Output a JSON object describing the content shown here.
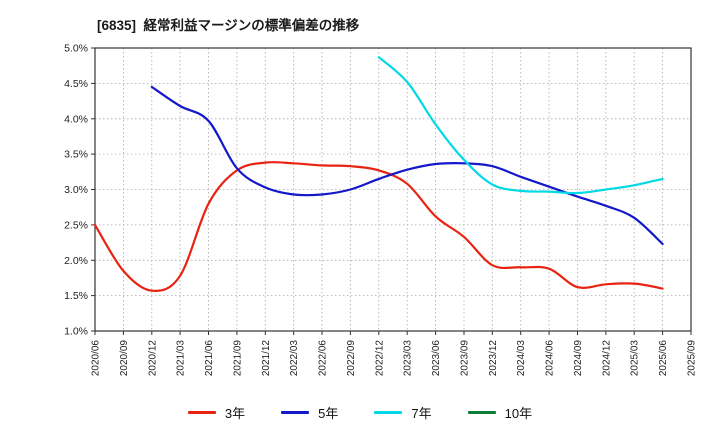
{
  "title": "[6835]  経常利益マージンの標準偏差の推移",
  "chart_data": {
    "type": "line",
    "title": "[6835]  経常利益マージンの標準偏差の推移",
    "x_labels": [
      "2020/06",
      "2020/09",
      "2020/12",
      "2021/03",
      "2021/06",
      "2021/09",
      "2021/12",
      "2022/03",
      "2022/06",
      "2022/09",
      "2022/12",
      "2023/03",
      "2023/06",
      "2023/09",
      "2023/12",
      "2024/03",
      "2024/06",
      "2024/09",
      "2024/12",
      "2025/03",
      "2025/06",
      "2025/09"
    ],
    "ylim": [
      1.0,
      5.0
    ],
    "ytick_step": 0.5,
    "ytick_format": "percent",
    "grid": true,
    "legend_position": "bottom",
    "axis_color": "#333333",
    "grid_color": "#aaaaaa",
    "series": [
      {
        "id": "3y",
        "name": "3年",
        "color": "#e82312",
        "values": [
          2.5,
          1.85,
          1.57,
          1.78,
          2.8,
          3.27,
          3.38,
          3.37,
          3.34,
          3.33,
          3.27,
          3.08,
          2.62,
          2.33,
          1.93,
          1.9,
          1.88,
          1.62,
          1.66,
          1.67,
          1.6,
          null
        ]
      },
      {
        "id": "5y",
        "name": "5年",
        "color": "#1318c8",
        "values": [
          null,
          null,
          4.45,
          4.18,
          3.97,
          3.3,
          3.03,
          2.93,
          2.93,
          3.0,
          3.15,
          3.28,
          3.36,
          3.37,
          3.33,
          3.18,
          3.04,
          2.9,
          2.77,
          2.6,
          2.23,
          null
        ]
      },
      {
        "id": "7y",
        "name": "7年",
        "color": "#00d9e6",
        "values": [
          null,
          null,
          null,
          null,
          null,
          null,
          null,
          null,
          null,
          null,
          4.87,
          4.52,
          3.92,
          3.42,
          3.07,
          2.98,
          2.97,
          2.95,
          3.0,
          3.06,
          3.15,
          null
        ]
      },
      {
        "id": "10y",
        "name": "10年",
        "color": "#0b7c3a",
        "values": [
          null,
          null,
          null,
          null,
          null,
          null,
          null,
          null,
          null,
          null,
          null,
          null,
          null,
          null,
          null,
          null,
          null,
          null,
          null,
          null,
          null,
          null
        ]
      }
    ]
  }
}
